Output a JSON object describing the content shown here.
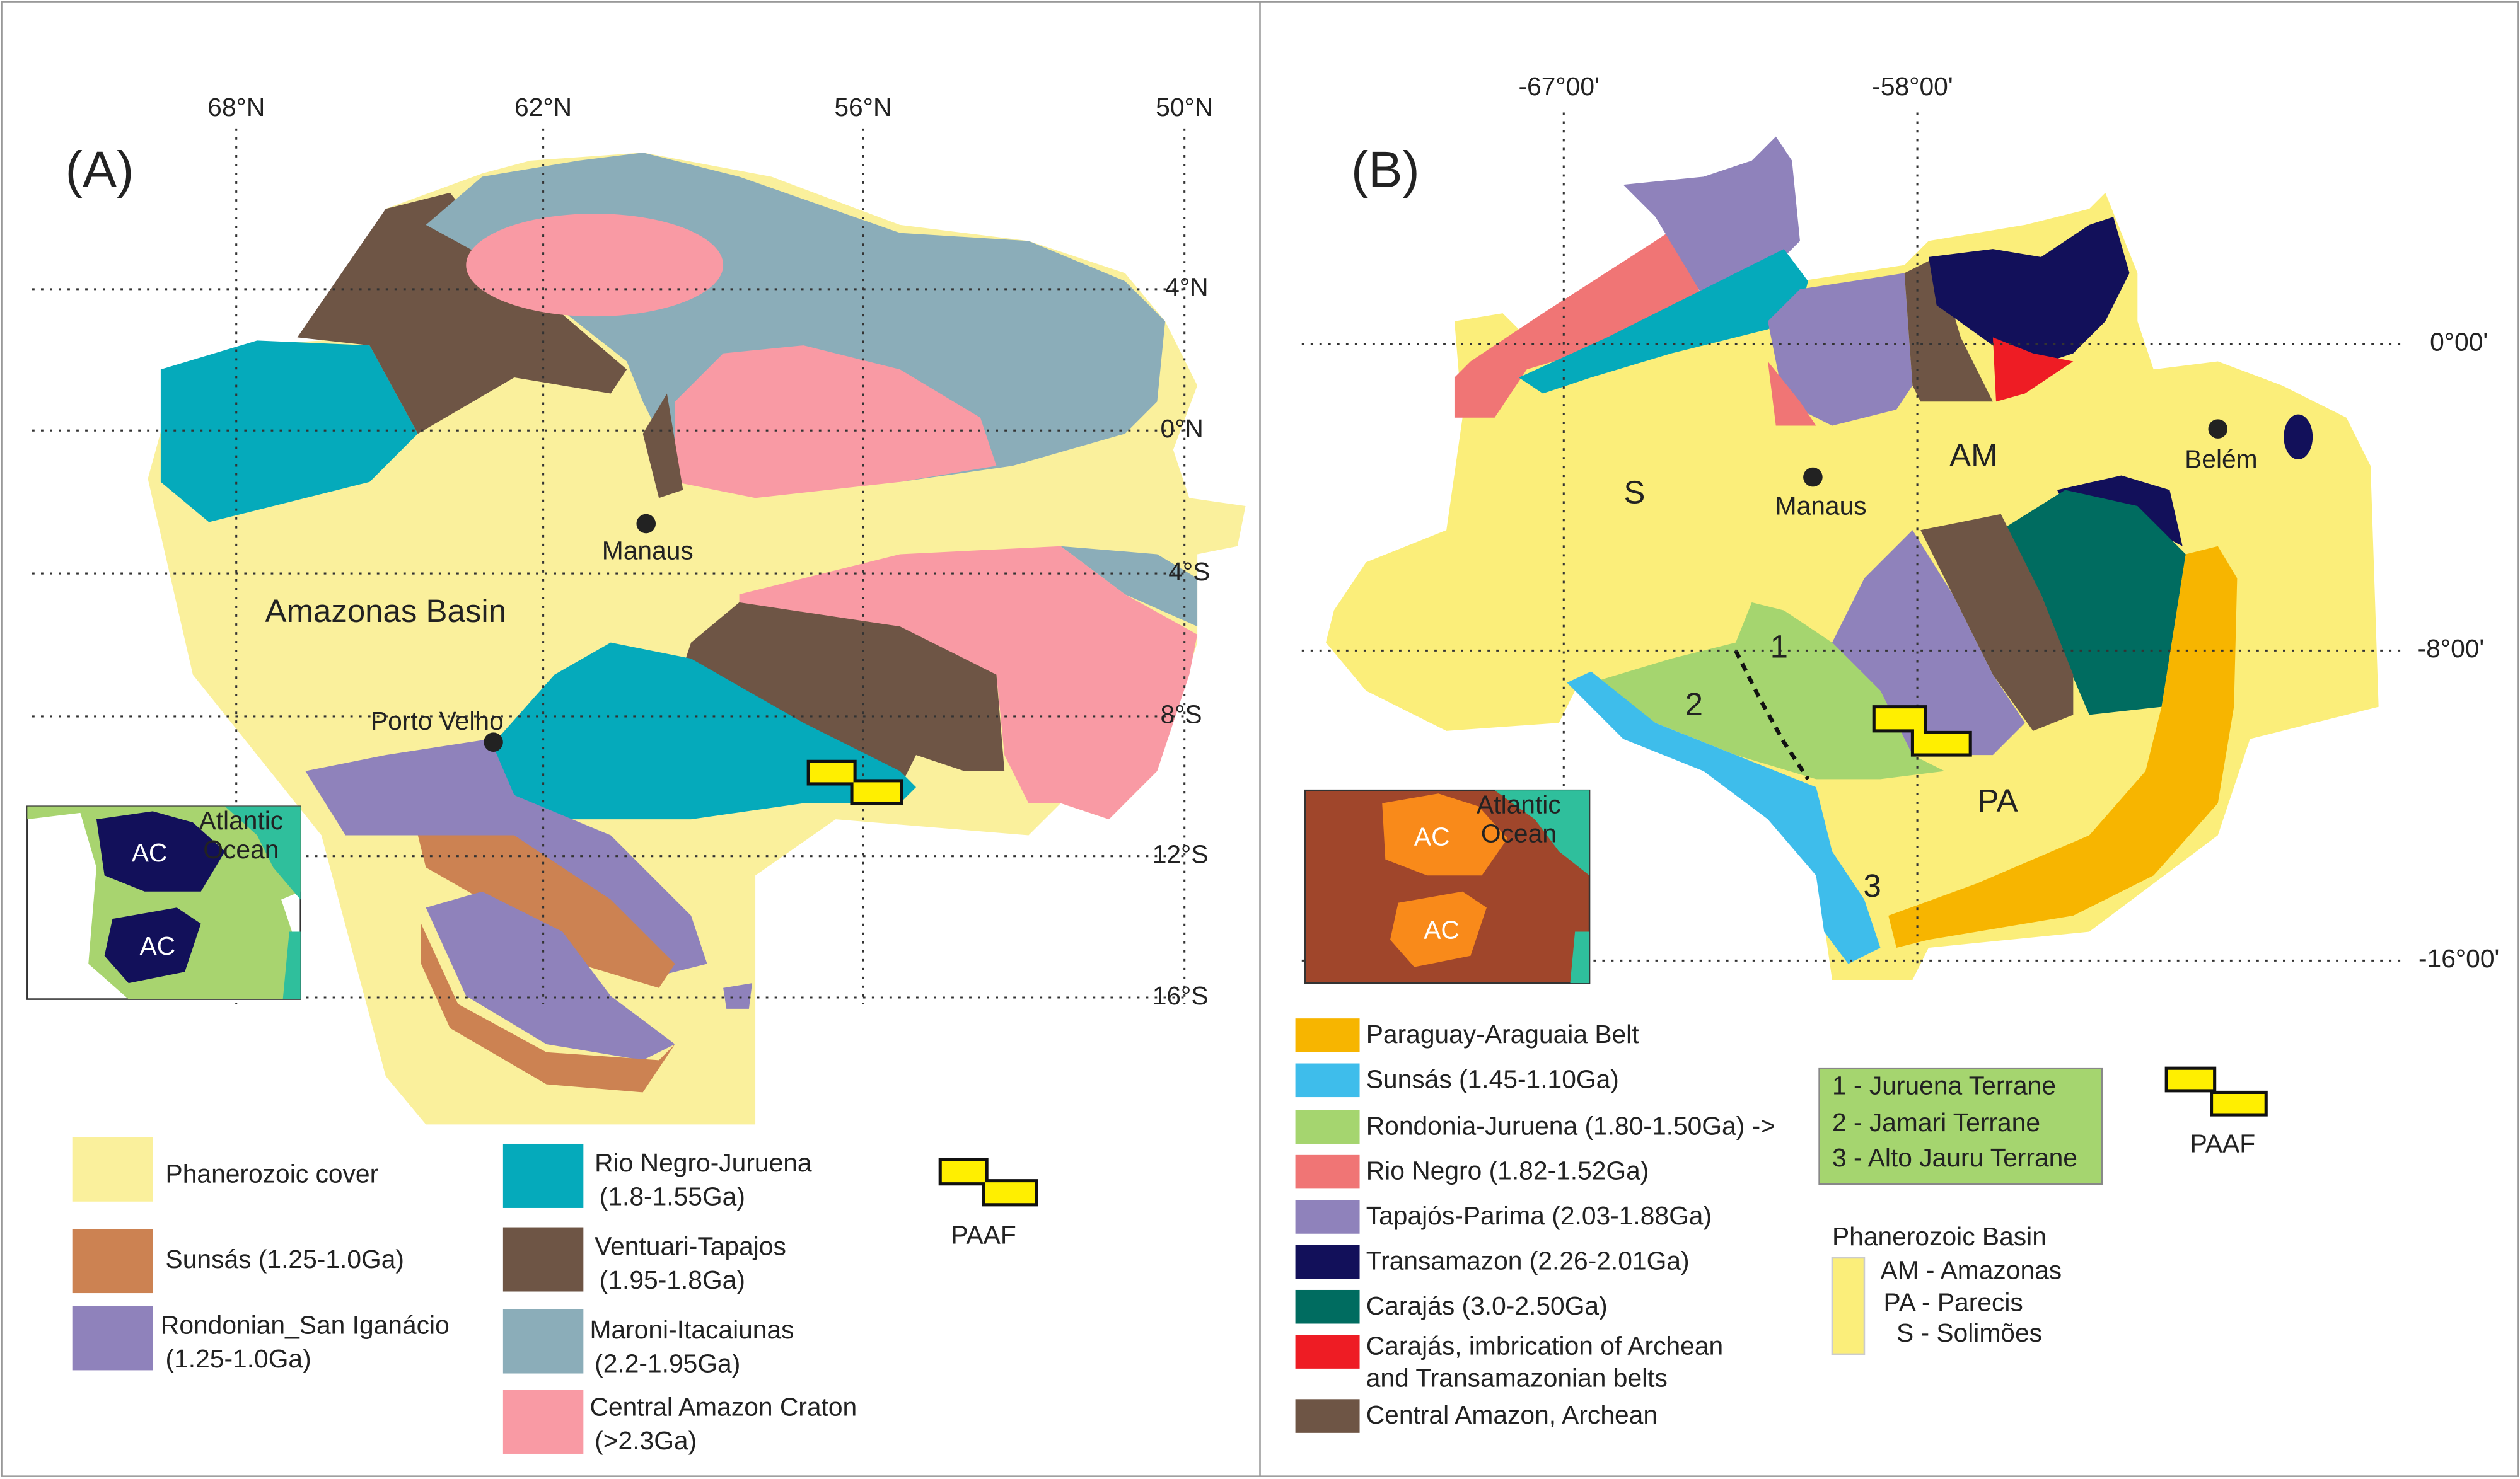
{
  "panel_a": {
    "label": "(A)",
    "lon_labels": [
      "68°N",
      "62°N",
      "56°N",
      "50°N"
    ],
    "lat_labels": [
      "4°N",
      "0°N",
      "4°S",
      "8°S",
      "12°S",
      "16°S"
    ],
    "places": [
      "Manaus",
      "Porto Velho"
    ],
    "region_label": "Amazonas Basin",
    "inset": {
      "ocean": [
        "Atlantic",
        "Ocean"
      ],
      "blocks": [
        "AC",
        "AC"
      ]
    },
    "legend": [
      {
        "lines": [
          "Phanerozoic cover"
        ],
        "color": "#faf09c"
      },
      {
        "lines": [
          "Sunsás (1.25-1.0Ga)"
        ],
        "color": "#cc8252"
      },
      {
        "lines": [
          "Rondonian_San Iganácio",
          "(1.25-1.0Ga)"
        ],
        "color": "#8f82bb"
      },
      {
        "lines": [
          "Rio Negro-Juruena",
          "(1.8-1.55Ga)"
        ],
        "color": "#05aabb"
      },
      {
        "lines": [
          "Ventuari-Tapajos",
          "(1.95-1.8Ga)"
        ],
        "color": "#6e5545"
      },
      {
        "lines": [
          "Maroni-Itacaiunas",
          "(2.2-1.95Ga)"
        ],
        "color": "#8badb9"
      },
      {
        "lines": [
          "Central Amazon Craton",
          "(>2.3Ga)"
        ],
        "color": "#f99aa4"
      }
    ],
    "paaf": "PAAF"
  },
  "panel_b": {
    "label": "(B)",
    "lon_labels": [
      "-67°00'",
      "-58°00'"
    ],
    "lat_labels": [
      "0°00'",
      "-8°00'",
      "-16°00'"
    ],
    "places": [
      "Manaus",
      "Belém"
    ],
    "basin_letters": [
      "S",
      "AM",
      "PA"
    ],
    "terrane_numbers": [
      "1",
      "2",
      "3"
    ],
    "inset": {
      "ocean": [
        "Atlantic",
        "Ocean"
      ],
      "blocks": [
        "AC",
        "AC"
      ]
    },
    "legend": [
      {
        "lines": [
          "Paraguay-Araguaia Belt"
        ],
        "color": "#f7b500"
      },
      {
        "lines": [
          "Sunsás (1.45-1.10Ga)"
        ],
        "color": "#3ebdeb"
      },
      {
        "lines": [
          "Rondonia-Juruena (1.80-1.50Ga) ->"
        ],
        "color": "#a5d56f"
      },
      {
        "lines": [
          "Rio Negro (1.82-1.52Ga)"
        ],
        "color": "#f07575"
      },
      {
        "lines": [
          "Tapajós-Parima (2.03-1.88Ga)"
        ],
        "color": "#8f82bb"
      },
      {
        "lines": [
          "Transamazon (2.26-2.01Ga)"
        ],
        "color": "#12105a"
      },
      {
        "lines": [
          "Carajás (3.0-2.50Ga)"
        ],
        "color": "#006c60"
      },
      {
        "lines": [
          "Carajás, imbrication of Archean",
          "and Transamazonian belts"
        ],
        "color": "#ee1c24"
      },
      {
        "lines": [
          "Central Amazon, Archean"
        ],
        "color": "#6e5545"
      }
    ],
    "terranes": [
      "1 - Juruena Terrane",
      "2 - Jamari Terrane",
      "3 - Alto Jauru Terrane"
    ],
    "basin_title": "Phanerozoic Basin",
    "basins": [
      "AM - Amazonas",
      "PA - Parecis",
      "S - Solimões"
    ],
    "paaf": "PAAF"
  }
}
